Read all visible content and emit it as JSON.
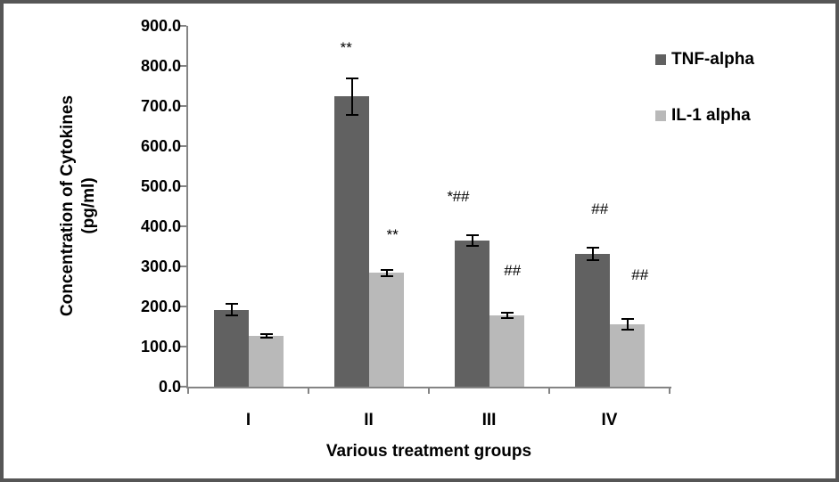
{
  "frame": {
    "border_color": "#565656",
    "background": "#ffffff"
  },
  "chart_data": {
    "type": "bar",
    "title": "",
    "xlabel": "Various treatment groups",
    "ylabel": "Concentration of Cytokines (pg/ml)",
    "ylabel_lines": [
      "Concentration of Cytokines",
      "(pg/ml)"
    ],
    "categories": [
      "I",
      "II",
      "III",
      "IV"
    ],
    "series": [
      {
        "name": "TNF-alpha",
        "color": "#616161",
        "values": [
          192,
          724,
          364,
          331
        ],
        "errors": [
          16,
          48,
          16,
          17
        ]
      },
      {
        "name": "IL-1 alpha",
        "color": "#b9b9b9",
        "values": [
          127,
          284,
          177,
          155
        ],
        "errors": [
          7,
          10,
          9,
          16
        ]
      }
    ],
    "ylim": [
      0,
      900
    ],
    "ytick_step": 100,
    "ytick_labels": [
      "0.0",
      "100.0",
      "200.0",
      "300.0",
      "400.0",
      "500.0",
      "600.0",
      "700.0",
      "800.0",
      "900.0"
    ],
    "annotations": [
      {
        "text": "**",
        "series": 0,
        "category": 1,
        "y": 845,
        "dx": -7
      },
      {
        "text": "**",
        "series": 1,
        "category": 1,
        "y": 378,
        "dx": 6
      },
      {
        "text": "*##",
        "series": 0,
        "category": 2,
        "y": 473,
        "dx": -16
      },
      {
        "text": "##",
        "series": 1,
        "category": 2,
        "y": 288,
        "dx": 6
      },
      {
        "text": "##",
        "series": 0,
        "category": 3,
        "y": 443,
        "dx": 8
      },
      {
        "text": "##",
        "series": 1,
        "category": 3,
        "y": 278,
        "dx": 14
      }
    ],
    "legend_position": "top-right",
    "grid": false,
    "axis_color": "#848484",
    "error_bar_color": "#000000"
  }
}
